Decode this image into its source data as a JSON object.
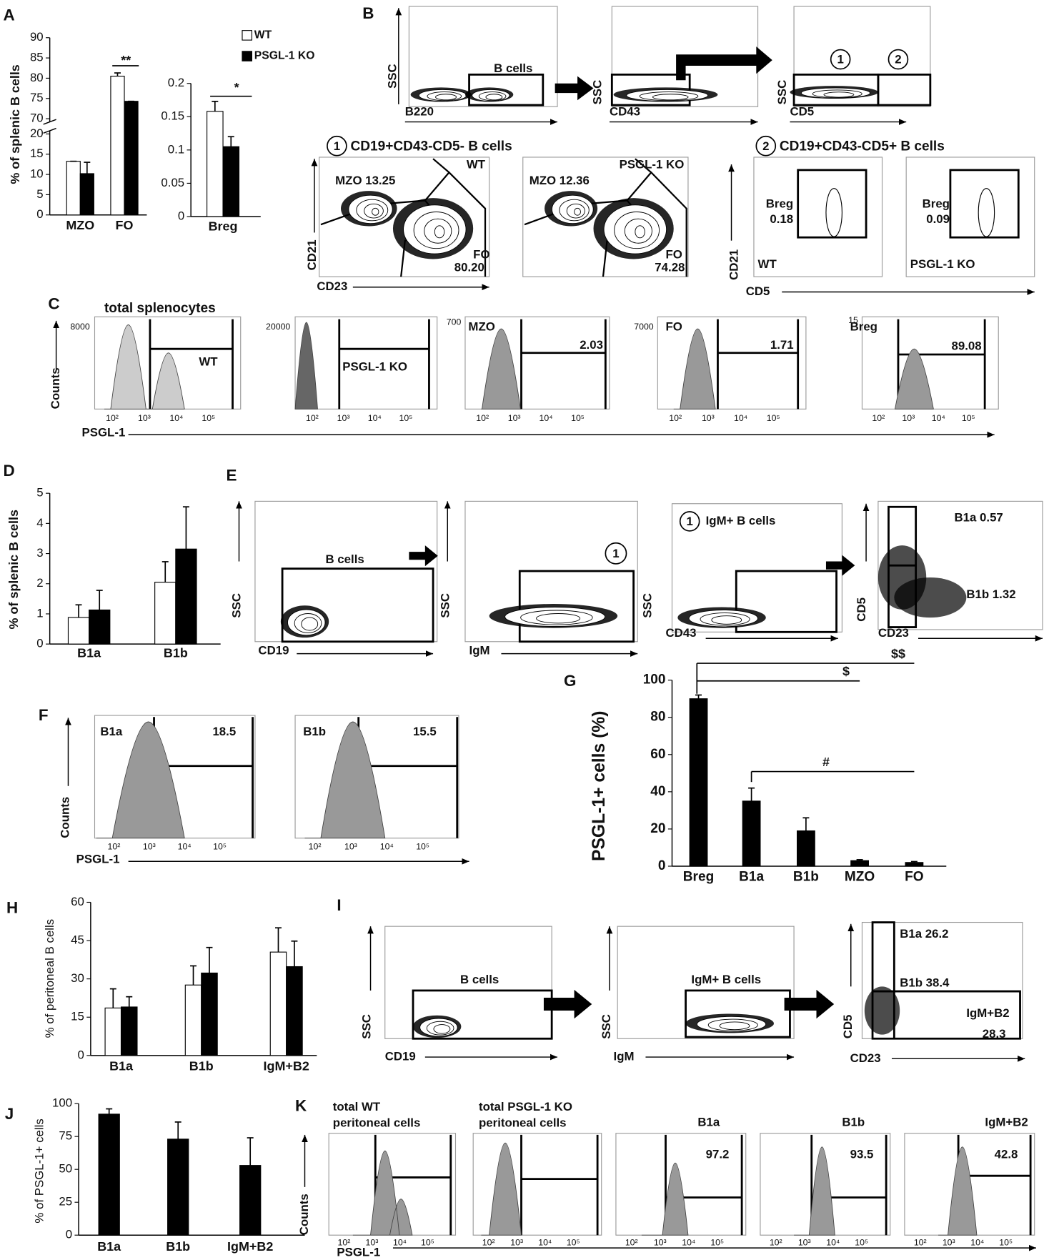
{
  "panel_letters": [
    "A",
    "B",
    "C",
    "D",
    "E",
    "F",
    "G",
    "H",
    "I",
    "J",
    "K"
  ],
  "log_ticks": [
    "10²",
    "10³",
    "10⁴",
    "10⁵"
  ],
  "chart_data": [
    {
      "type": "bar",
      "y_label": "% of splenic B cells",
      "categories": [
        "MZO",
        "FO"
      ],
      "series": [
        {
          "name": "WT",
          "color": "#ffffff",
          "values": [
            13.25,
            80.5
          ],
          "errors": [
            0,
            0.8
          ]
        },
        {
          "name": "PSGL-1 KO",
          "color": "#000000",
          "values": [
            10.2,
            74.3
          ],
          "errors": [
            2.8,
            0
          ]
        }
      ],
      "ylim": [
        0,
        90
      ],
      "axis_break": [
        20,
        70
      ],
      "yticks": [
        0,
        5,
        10,
        15,
        20,
        70,
        75,
        80,
        85,
        90
      ],
      "annotations": [
        "**"
      ]
    },
    {
      "type": "bar",
      "categories": [
        "Breg"
      ],
      "series": [
        {
          "color": "#ffffff",
          "values": [
            0.158
          ],
          "errors": [
            0.015
          ]
        },
        {
          "color": "#000000",
          "values": [
            0.105
          ],
          "errors": [
            0.015
          ]
        }
      ],
      "ylim": [
        0,
        0.2
      ],
      "yticks": [
        0,
        0.05,
        0.1,
        0.15,
        0.2
      ],
      "annotations": [
        "*"
      ]
    },
    {
      "type": "bar",
      "y_label": "% of splenic B cells",
      "categories": [
        "B1a",
        "B1b"
      ],
      "series": [
        {
          "color": "#ffffff",
          "values": [
            0.88,
            2.05
          ],
          "errors": [
            0.42,
            0.68
          ]
        },
        {
          "color": "#000000",
          "values": [
            1.13,
            3.15
          ],
          "errors": [
            0.65,
            1.4
          ]
        }
      ],
      "ylim": [
        0,
        5
      ],
      "yticks": [
        0,
        1,
        2,
        3,
        4,
        5
      ]
    },
    {
      "type": "bar",
      "y_label": "PSGL-1+ cells (%)",
      "categories": [
        "Breg",
        "B1a",
        "B1b",
        "MZO",
        "FO"
      ],
      "series": [
        {
          "color": "#000000",
          "values": [
            90,
            35,
            19,
            3,
            2
          ],
          "errors": [
            2,
            7,
            7,
            0.5,
            0.5
          ]
        }
      ],
      "ylim": [
        0,
        100
      ],
      "yticks": [
        0,
        20,
        40,
        60,
        80,
        100
      ],
      "annotations": [
        "$$",
        "$",
        "#"
      ]
    },
    {
      "type": "bar",
      "y_label": "% of peritoneal B cells",
      "categories": [
        "B1a",
        "B1b",
        "IgM+B2"
      ],
      "series": [
        {
          "color": "#ffffff",
          "values": [
            18.6,
            27.6,
            40.5
          ],
          "errors": [
            7.5,
            7.5,
            9.5
          ]
        },
        {
          "color": "#000000",
          "values": [
            19,
            32.3,
            34.8
          ],
          "errors": [
            4,
            10,
            10
          ]
        }
      ],
      "ylim": [
        0,
        60
      ],
      "yticks": [
        0,
        15,
        30,
        45,
        60
      ]
    },
    {
      "type": "bar",
      "y_label": "% of PSGL-1+ cells",
      "categories": [
        "B1a",
        "B1b",
        "IgM+B2"
      ],
      "series": [
        {
          "color": "#000000",
          "values": [
            92,
            73,
            53
          ],
          "errors": [
            4,
            13,
            21
          ]
        }
      ],
      "ylim": [
        0,
        100
      ],
      "yticks": [
        0,
        25,
        50,
        75,
        100
      ]
    }
  ],
  "panel_B": {
    "plots": [
      {
        "y": "SSC",
        "x": "B220",
        "gate": "B cells"
      },
      {
        "y": "SSC",
        "x": "CD43"
      },
      {
        "y": "SSC",
        "x": "CD5",
        "gates": [
          "1",
          "2"
        ]
      }
    ],
    "sub1": {
      "num": "1",
      "title": "CD19+CD43-CD5- B cells",
      "y": "CD21",
      "x": "CD23",
      "plots": [
        {
          "sample": "WT",
          "mzo": "MZO 13.25",
          "fo": "FO",
          "fo_value": "80.20"
        },
        {
          "sample": "PSGL-1 KO",
          "mzo": "MZO 12.36",
          "fo": "FO",
          "fo_value": "74.28"
        }
      ]
    },
    "sub2": {
      "num": "2",
      "title": "CD19+CD43-CD5+ B cells",
      "y": "CD21",
      "x": "CD5",
      "plots": [
        {
          "gate": "Breg",
          "value": "0.18",
          "sample": "WT"
        },
        {
          "gate": "Breg",
          "value": "0.09",
          "sample": "PSGL-1 KO"
        }
      ]
    }
  },
  "panel_C": {
    "title": "total splenocytes",
    "y_label": "Counts",
    "x_label": "PSGL-1",
    "plots": [
      {
        "ymax": "8000",
        "label": "WT"
      },
      {
        "ymax": "20000",
        "label": "PSGL-1 KO"
      },
      {
        "ymax": "700",
        "name": "MZO",
        "value": "2.03"
      },
      {
        "ymax": "7000",
        "name": "FO",
        "value": "1.71"
      },
      {
        "ymax": "15",
        "name": "Breg",
        "value": "89.08"
      }
    ]
  },
  "panel_E": {
    "plots": [
      {
        "y": "SSC",
        "x": "CD19",
        "gate": "B cells"
      },
      {
        "y": "SSC",
        "x": "IgM",
        "gate": "1"
      },
      {
        "y": "SSC",
        "x": "CD43",
        "num": "1",
        "title": "IgM+ B cells"
      },
      {
        "y": "CD5",
        "x": "CD23",
        "b1a": "B1a  0.57",
        "b1b": "B1b  1.32"
      }
    ]
  },
  "panel_F": {
    "y_label": "Counts",
    "x_label": "PSGL-1",
    "plots": [
      {
        "name": "B1a",
        "value": "18.5"
      },
      {
        "name": "B1b",
        "value": "15.5"
      }
    ]
  },
  "panel_I": {
    "plots": [
      {
        "y": "SSC",
        "x": "CD19",
        "gate": "B cells"
      },
      {
        "y": "SSC",
        "x": "IgM",
        "gate": "IgM+ B cells"
      },
      {
        "y": "CD5",
        "x": "CD23",
        "b1a": "B1a 26.2",
        "b1b": "B1b 38.4",
        "b2": "IgM+B2",
        "b2_value": "28.3"
      }
    ]
  },
  "panel_K": {
    "y_label": "Counts",
    "x_label": "PSGL-1",
    "plots": [
      {
        "name": [
          "total WT",
          "peritoneal cells"
        ]
      },
      {
        "name": [
          "total PSGL-1 KO",
          "peritoneal cells"
        ]
      },
      {
        "name": [
          "B1a"
        ],
        "value": "97.2"
      },
      {
        "name": [
          "B1b"
        ],
        "value": "93.5"
      },
      {
        "name": [
          "IgM+B2"
        ],
        "value": "42.8"
      }
    ]
  }
}
